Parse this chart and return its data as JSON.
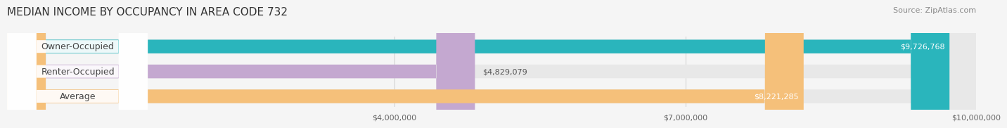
{
  "title": "MEDIAN INCOME BY OCCUPANCY IN AREA CODE 732",
  "source": "Source: ZipAtlas.com",
  "categories": [
    "Owner-Occupied",
    "Renter-Occupied",
    "Average"
  ],
  "values": [
    9726768,
    4829079,
    8221285
  ],
  "bar_colors": [
    "#2ab5bc",
    "#c4a8d0",
    "#f5c07a"
  ],
  "label_colors": [
    "#ffffff",
    "#555555",
    "#ffffff"
  ],
  "value_labels": [
    "$9,726,768",
    "$4,829,079",
    "$8,221,285"
  ],
  "xlim": [
    0,
    10000000
  ],
  "xticks": [
    4000000,
    7000000,
    10000000
  ],
  "xtick_labels": [
    "$4,000,000",
    "$7,000,000",
    "$10,000,000"
  ],
  "background_color": "#f5f5f5",
  "bar_bg_color": "#e8e8e8",
  "title_fontsize": 11,
  "source_fontsize": 8,
  "label_fontsize": 9,
  "value_fontsize": 8
}
